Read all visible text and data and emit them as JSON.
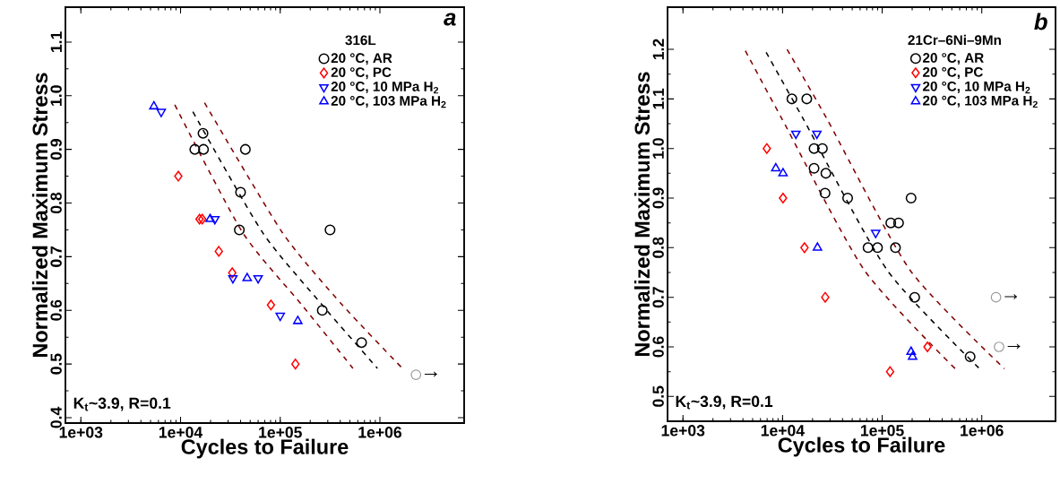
{
  "chart_data": [
    {
      "type": "scatter",
      "legend_title": "316L",
      "xlabel": "Cycles to Failure",
      "ylabel": "Normalized Maximum Stress",
      "log": "x",
      "legend": "top right",
      "annotations": [
        "a",
        "K$_{t}$~3.9, R=0.1",
        {
          "text": "→",
          "x": 2300000,
          "y": 0.48
        }
      ],
      "xlim": [
        700,
        7000000
      ],
      "ylim": [
        0.39,
        1.165
      ],
      "xticks": [
        {
          "value": 1000,
          "label": "1e+03"
        },
        {
          "value": 10000,
          "label": "1e+04"
        },
        {
          "value": 100000,
          "label": "1e+05"
        },
        {
          "value": 1000000,
          "label": "1e+06"
        }
      ],
      "yticks": [
        0.4,
        0.5,
        0.6,
        0.7,
        0.8,
        0.9,
        {
          "value": 1,
          "label": "1.0"
        },
        1.1
      ],
      "series": [
        {
          "name": "20 °C, AR",
          "marker": "circle",
          "color": "#000000",
          "x": [
            16800,
            13900,
            17000,
            44700,
            40000,
            38900,
            316000,
            264000,
            655000
          ],
          "values": [
            0.93,
            0.9,
            0.9,
            0.9,
            0.82,
            0.75,
            0.75,
            0.6,
            0.54
          ]
        },
        {
          "name": "20 °C, PC",
          "marker": "diamond",
          "color": "#ff0000",
          "x": [
            9500,
            15500,
            16500,
            24200,
            33000,
            80700,
            142000
          ],
          "values": [
            0.85,
            0.77,
            0.77,
            0.71,
            0.67,
            0.61,
            0.5
          ]
        },
        {
          "name": "20 °C, 10 MPa H$_{2}$",
          "marker": "triangle-down",
          "color": "#0000ff",
          "x": [
            6400,
            22100,
            33500,
            60000,
            100000
          ],
          "values": [
            0.97,
            0.77,
            0.66,
            0.66,
            0.59
          ]
        },
        {
          "name": "20 °C, 103 MPa H$_{2}$",
          "marker": "triangle",
          "color": "#0000ff",
          "x": [
            5400,
            19800,
            46600,
            150000
          ],
          "values": [
            0.98,
            0.77,
            0.66,
            0.58
          ]
        },
        {
          "marker": "circle",
          "color": "#999999",
          "x": [
            2300000
          ],
          "values": [
            0.48
          ]
        },
        {
          "type": "line",
          "line_style": "dashed",
          "color": "#000000",
          "x": [
            13300,
            66500,
            264000,
            944000
          ],
          "values": [
            0.97,
            0.745,
            0.61,
            0.492
          ]
        },
        {
          "type": "line",
          "line_style": "dashed",
          "color": "#800000",
          "x": [
            17400,
            105000,
            420000,
            1640000
          ],
          "values": [
            0.987,
            0.745,
            0.61,
            0.494
          ]
        },
        {
          "type": "line",
          "line_style": "dashed",
          "color": "#800000",
          "x": [
            8750,
            42000,
            165000,
            536000
          ],
          "values": [
            0.983,
            0.745,
            0.61,
            0.492
          ]
        }
      ]
    },
    {
      "type": "scatter",
      "legend_title": "21Cr–6Ni–9Mn",
      "xlabel": "Cycles to Failure",
      "ylabel": "Normalized Maximum Stress",
      "log": "x",
      "legend": "top right",
      "annotations": [
        "b",
        "K$_{t}$~3.9, R=0.1",
        {
          "text": "→",
          "x": 1390000,
          "y": 0.7
        },
        {
          "text": "→",
          "x": 1490000,
          "y": 0.6
        }
      ],
      "xlim": [
        700,
        5500000
      ],
      "ylim": [
        0.45,
        1.285
      ],
      "xticks": [
        {
          "value": 1000,
          "label": "1e+03"
        },
        {
          "value": 10000,
          "label": "1e+04"
        },
        {
          "value": 100000,
          "label": "1e+05"
        },
        {
          "value": 1000000,
          "label": "1e+06"
        }
      ],
      "yticks": [
        0.5,
        0.6,
        0.7,
        0.8,
        0.9,
        {
          "value": 1,
          "label": "1.0"
        },
        1.1,
        1.2
      ],
      "series": [
        {
          "name": "20 °C, AR",
          "marker": "circle",
          "color": "#000000",
          "x": [
            12400,
            17500,
            20700,
            25100,
            20700,
            27200,
            26700,
            45000,
            195000,
            122000,
            146000,
            72100,
            89800,
            136000,
            212000,
            764000
          ],
          "values": [
            1.1,
            1.1,
            1.0,
            1.0,
            0.96,
            0.95,
            0.91,
            0.9,
            0.9,
            0.85,
            0.85,
            0.8,
            0.8,
            0.8,
            0.7,
            0.58
          ]
        },
        {
          "name": "20 °C, PC",
          "marker": "diamond",
          "color": "#ff0000",
          "x": [
            6950,
            10100,
            16600,
            26800,
            120000,
            285000
          ],
          "values": [
            1.0,
            0.9,
            0.8,
            0.7,
            0.55,
            0.6
          ]
        },
        {
          "name": "20 °C, 10 MPa H$_{2}$",
          "marker": "triangle-down",
          "color": "#0000ff",
          "x": [
            13600,
            22100,
            86100
          ],
          "values": [
            1.03,
            1.03,
            0.83
          ]
        },
        {
          "name": "20 °C, 103 MPa H$_{2}$",
          "marker": "triangle",
          "color": "#0000ff",
          "x": [
            8550,
            10100,
            22400,
            195000,
            202000
          ],
          "values": [
            0.96,
            0.95,
            0.8,
            0.59,
            0.58
          ]
        },
        {
          "marker": "circle",
          "color": "#999999",
          "x": [
            1390000,
            1490000
          ],
          "values": [
            0.7,
            0.6
          ]
        },
        {
          "type": "line",
          "line_style": "dashed",
          "color": "#000000",
          "x": [
            6840,
            16200,
            112000,
            950000
          ],
          "values": [
            1.194,
            1.059,
            0.755,
            0.556
          ]
        },
        {
          "type": "line",
          "line_style": "dashed",
          "color": "#800000",
          "x": [
            11100,
            28000,
            190000,
            1690000
          ],
          "values": [
            1.2,
            1.059,
            0.755,
            0.556
          ]
        },
        {
          "type": "line",
          "line_style": "dashed",
          "color": "#800000",
          "x": [
            4230,
            9900,
            66000,
            541000
          ],
          "values": [
            1.197,
            1.059,
            0.755,
            0.556
          ]
        }
      ]
    }
  ]
}
